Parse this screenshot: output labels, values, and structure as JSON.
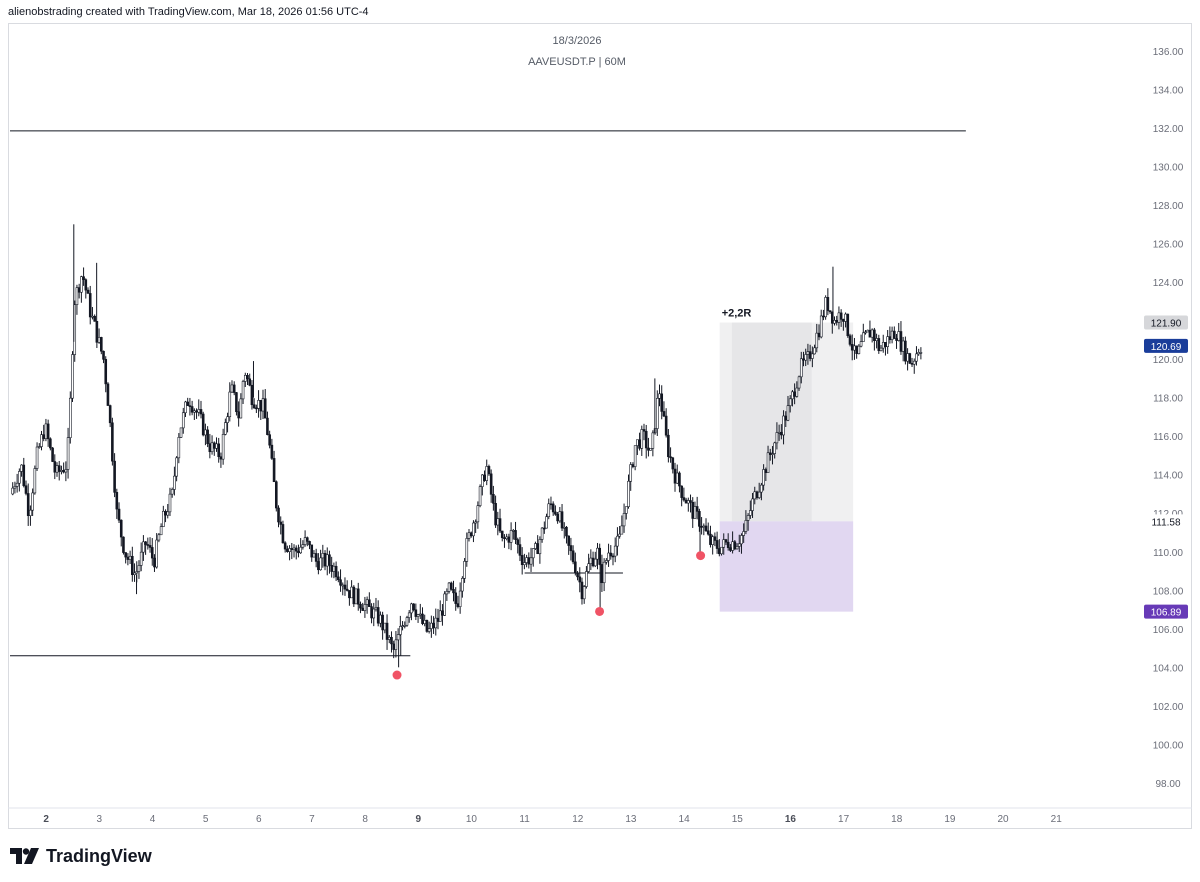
{
  "header": {
    "credit": "alienobstrading created with TradingView.com, Mar 18, 2026 01:56 UTC-4"
  },
  "chart_title": {
    "date": "18/3/2026",
    "symbol_line": "AAVEUSDT.P | 60M"
  },
  "footer": {
    "brand": "TradingView",
    "logo_icon": "tradingview-logo-icon"
  },
  "colors": {
    "candle": "#131722",
    "lines": "#131722",
    "marker": "#f05365",
    "profit_zone": "#f0f0f1",
    "profit_zone_dark": "#e6e6e8",
    "stop_zone": "#e1d7f1",
    "badge_price": "#1a3d9a",
    "badge_target": "#d6d7da",
    "badge_stop": "#673ab7",
    "axis_text": "#6a6d78"
  },
  "chart_data": {
    "type": "candlestick",
    "symbol": "AAVEUSDT.P",
    "timeframe": "60M",
    "xlim": [
      1.32,
      22.35
    ],
    "ylim": [
      96.8,
      137.4
    ],
    "x_ticks": [
      2,
      3,
      4,
      5,
      6,
      7,
      8,
      9,
      10,
      11,
      12,
      13,
      14,
      15,
      16,
      17,
      18,
      19,
      20,
      21
    ],
    "x_ticks_bold": [
      2,
      9,
      16
    ],
    "y_ticks": [
      98,
      100,
      102,
      104,
      106,
      108,
      110,
      112,
      114,
      116,
      118,
      120,
      122,
      124,
      126,
      128,
      130,
      132,
      134,
      136
    ],
    "y_tick_format": "00.00",
    "price_path": [
      [
        1.35,
        113.0
      ],
      [
        1.55,
        114.5
      ],
      [
        1.7,
        112.0
      ],
      [
        1.85,
        115.0
      ],
      [
        2.0,
        116.5
      ],
      [
        2.2,
        114.0
      ],
      [
        2.4,
        114.5
      ],
      [
        2.45,
        116.0
      ],
      [
        2.55,
        123.0
      ],
      [
        2.7,
        124.5
      ],
      [
        2.85,
        122.5
      ],
      [
        3.0,
        121.0
      ],
      [
        3.1,
        120.0
      ],
      [
        3.2,
        117.5
      ],
      [
        3.35,
        112.0
      ],
      [
        3.5,
        110.0
      ],
      [
        3.7,
        108.8
      ],
      [
        3.9,
        110.5
      ],
      [
        4.05,
        109.5
      ],
      [
        4.2,
        111.5
      ],
      [
        4.4,
        113.0
      ],
      [
        4.5,
        116.0
      ],
      [
        4.7,
        118.0
      ],
      [
        4.9,
        117.0
      ],
      [
        5.1,
        115.5
      ],
      [
        5.3,
        115.0
      ],
      [
        5.5,
        118.5
      ],
      [
        5.65,
        117.0
      ],
      [
        5.75,
        119.5
      ],
      [
        5.9,
        118.0
      ],
      [
        6.1,
        117.5
      ],
      [
        6.2,
        116.0
      ],
      [
        6.35,
        112.5
      ],
      [
        6.5,
        110.5
      ],
      [
        6.7,
        110.0
      ],
      [
        6.9,
        110.5
      ],
      [
        7.1,
        109.5
      ],
      [
        7.3,
        109.5
      ],
      [
        7.5,
        109.0
      ],
      [
        7.7,
        108.0
      ],
      [
        7.9,
        107.5
      ],
      [
        8.1,
        107.0
      ],
      [
        8.3,
        106.5
      ],
      [
        8.45,
        105.5
      ],
      [
        8.55,
        104.8
      ],
      [
        8.7,
        106.0
      ],
      [
        8.9,
        107.5
      ],
      [
        9.05,
        106.5
      ],
      [
        9.2,
        105.8
      ],
      [
        9.4,
        106.5
      ],
      [
        9.6,
        108.0
      ],
      [
        9.75,
        107.2
      ],
      [
        9.9,
        110.0
      ],
      [
        10.1,
        112.0
      ],
      [
        10.3,
        114.5
      ],
      [
        10.45,
        112.0
      ],
      [
        10.6,
        110.5
      ],
      [
        10.8,
        111.0
      ],
      [
        11.0,
        109.5
      ],
      [
        11.2,
        109.8
      ],
      [
        11.35,
        111.0
      ],
      [
        11.5,
        112.5
      ],
      [
        11.65,
        112.0
      ],
      [
        11.8,
        110.5
      ],
      [
        11.95,
        109.5
      ],
      [
        12.1,
        108.0
      ],
      [
        12.25,
        109.5
      ],
      [
        12.4,
        110.0
      ],
      [
        12.45,
        108.5
      ],
      [
        12.6,
        110.0
      ],
      [
        12.8,
        110.5
      ],
      [
        12.95,
        113.0
      ],
      [
        13.1,
        115.5
      ],
      [
        13.25,
        116.0
      ],
      [
        13.4,
        115.0
      ],
      [
        13.55,
        118.5
      ],
      [
        13.7,
        115.5
      ],
      [
        13.85,
        114.0
      ],
      [
        14.0,
        113.0
      ],
      [
        14.2,
        112.0
      ],
      [
        14.35,
        111.5
      ],
      [
        14.5,
        110.5
      ],
      [
        14.7,
        110.2
      ],
      [
        14.85,
        110.5
      ],
      [
        15.0,
        110.5
      ],
      [
        15.15,
        111.0
      ],
      [
        15.3,
        112.5
      ],
      [
        15.5,
        114.0
      ],
      [
        15.7,
        115.5
      ],
      [
        15.85,
        116.5
      ],
      [
        16.0,
        117.5
      ],
      [
        16.2,
        119.5
      ],
      [
        16.35,
        120.0
      ],
      [
        16.55,
        121.5
      ],
      [
        16.7,
        123.0
      ],
      [
        16.85,
        122.0
      ],
      [
        17.0,
        122.5
      ],
      [
        17.1,
        121.5
      ],
      [
        17.25,
        120.0
      ],
      [
        17.4,
        121.0
      ],
      [
        17.55,
        121.5
      ],
      [
        17.7,
        120.5
      ],
      [
        17.85,
        121.0
      ],
      [
        18.0,
        121.5
      ],
      [
        18.15,
        120.5
      ],
      [
        18.3,
        119.8
      ],
      [
        18.45,
        120.7
      ]
    ],
    "wicks": [
      [
        2.52,
        127.0
      ],
      [
        2.95,
        125.0
      ],
      [
        3.7,
        107.8
      ],
      [
        5.9,
        119.9
      ],
      [
        8.63,
        104.0
      ],
      [
        12.42,
        107.0
      ],
      [
        13.45,
        119.0
      ],
      [
        14.3,
        109.8
      ],
      [
        16.8,
        124.8
      ]
    ],
    "horizontal_lines": [
      {
        "y": 131.85,
        "x_start": 1.32,
        "x_end": 19.3
      },
      {
        "y": 104.6,
        "x_start": 1.32,
        "x_end": 8.85
      },
      {
        "y": 108.9,
        "x_start": 11.0,
        "x_end": 12.85
      },
      {
        "y": 104.6,
        "x_start": 8.67,
        "x_end": 8.67,
        "y_end": 106.0
      }
    ],
    "markers": [
      {
        "x": 8.6,
        "y": 103.6
      },
      {
        "x": 12.41,
        "y": 106.9
      },
      {
        "x": 14.31,
        "y": 109.8
      }
    ],
    "position": {
      "type": "long",
      "entry": 111.58,
      "target": 121.9,
      "stop": 106.89,
      "x_start": 14.67,
      "x_end": 17.18,
      "x_dark_start": 14.9,
      "x_dark_end": 16.4,
      "label": "+2,2R"
    },
    "price_badges": [
      {
        "value": "121.90",
        "role": "target"
      },
      {
        "value": "120.69",
        "role": "last-price"
      },
      {
        "value": "111.58",
        "role": "entry"
      },
      {
        "value": "106.89",
        "role": "stop"
      }
    ]
  }
}
